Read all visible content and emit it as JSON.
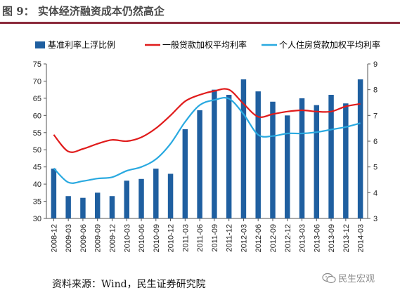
{
  "title": "图 9： 实体经济融资成本仍然高企",
  "source": "资料来源：Wind，民生证券研究院",
  "watermark": "民生宏观",
  "colors": {
    "bar": "#1f5fa0",
    "line1": "#e01b1b",
    "line2": "#29a9e0",
    "title_rule": "#8b2a3c",
    "title_text": "#4a4a4a"
  },
  "chart_data": {
    "type": "bar",
    "categories": [
      "2008-12",
      "2009-03",
      "2009-06",
      "2009-09",
      "2009-12",
      "2010-03",
      "2010-06",
      "2010-09",
      "2010-12",
      "2011-03",
      "2011-06",
      "2011-09",
      "2011-12",
      "2012-03",
      "2012-06",
      "2012-09",
      "2012-12",
      "2013-03",
      "2013-06",
      "2013-09",
      "2013-12",
      "2014-03"
    ],
    "series": [
      {
        "name": "基准利率上浮比例",
        "type": "bar",
        "axis": "left",
        "values": [
          44.5,
          36.5,
          36,
          37.5,
          36.5,
          41,
          41.5,
          44.5,
          43,
          56,
          61.5,
          67.5,
          66,
          70.5,
          67,
          64,
          60,
          65,
          63,
          66,
          63.5,
          70.5
        ]
      },
      {
        "name": "一般贷款加权平均利率",
        "type": "line",
        "axis": "right",
        "values": [
          6.25,
          5.6,
          5.7,
          5.9,
          6.05,
          6.0,
          6.15,
          6.5,
          7.0,
          7.55,
          7.8,
          7.95,
          8.0,
          7.45,
          6.95,
          7.05,
          7.15,
          7.2,
          7.15,
          7.15,
          7.35,
          7.45
        ]
      },
      {
        "name": "个人住房贷款加权平均利率",
        "type": "line",
        "axis": "right",
        "values": [
          4.95,
          4.4,
          4.45,
          4.55,
          4.6,
          4.85,
          5.0,
          5.3,
          5.9,
          6.75,
          7.4,
          7.6,
          7.65,
          7.05,
          6.25,
          6.2,
          6.3,
          6.3,
          6.35,
          6.45,
          6.55,
          6.7
        ]
      }
    ],
    "yleft": {
      "lim": [
        30,
        75
      ],
      "ticks": [
        30,
        35,
        40,
        45,
        50,
        55,
        60,
        65,
        70,
        75
      ]
    },
    "yright": {
      "lim": [
        3,
        9
      ],
      "ticks": [
        3,
        4,
        5,
        6,
        7,
        8,
        9
      ]
    },
    "legend": "top",
    "grid": false
  }
}
